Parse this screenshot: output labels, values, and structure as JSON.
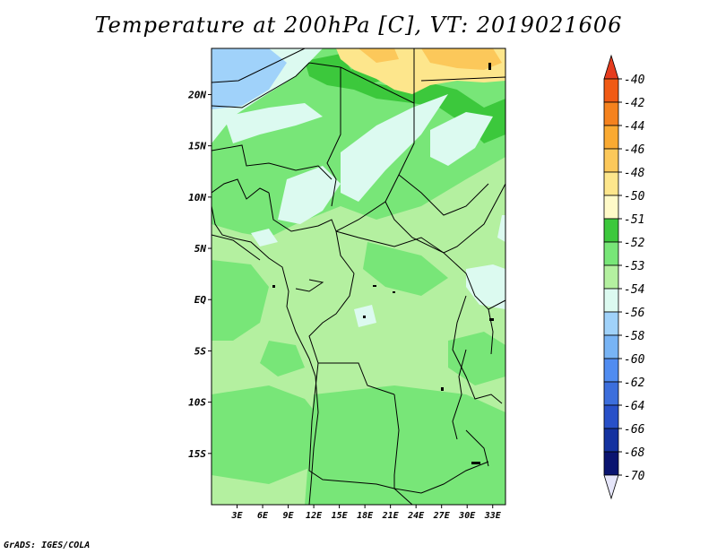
{
  "title": "Temperature at 200hPa [C], VT: 2019021606",
  "credit": "GrADS: IGES/COLA",
  "axes": {
    "lat_labels": [
      "20N",
      "15N",
      "10N",
      "5N",
      "EQ",
      "5S",
      "10S",
      "15S"
    ],
    "lat_values": [
      20,
      15,
      10,
      5,
      0,
      -5,
      -10,
      -15
    ],
    "lon_labels": [
      "3E",
      "6E",
      "9E",
      "12E",
      "15E",
      "18E",
      "21E",
      "24E",
      "27E",
      "30E",
      "33E"
    ],
    "lon_values": [
      3,
      6,
      9,
      12,
      15,
      18,
      21,
      24,
      27,
      30,
      33
    ],
    "lon_range": [
      0,
      34.5
    ],
    "lat_range": [
      -20,
      24.5
    ]
  },
  "colorbar": {
    "labels": [
      "-40",
      "-42",
      "-44",
      "-46",
      "-48",
      "-50",
      "-51",
      "-52",
      "-53",
      "-54",
      "-56",
      "-58",
      "-60",
      "-62",
      "-64",
      "-66",
      "-68",
      "-70"
    ],
    "colors": [
      "#e63c1e",
      "#f05a14",
      "#f5821e",
      "#faaa32",
      "#fcc85a",
      "#fde68c",
      "#fffac8",
      "#3cc83c",
      "#78e678",
      "#b4f0a0",
      "#dcfaf0",
      "#a0d2fa",
      "#78b4f5",
      "#508cf0",
      "#3c6edc",
      "#2850c8",
      "#1432a0",
      "#0a1470",
      "#e6e6fa"
    ]
  },
  "field_colors": {
    "warm_north": "#fcc85a",
    "warm_light": "#fde68c",
    "cold_nw": "#a0d2fa",
    "band_52": "#3cc83c",
    "band_53": "#78e678",
    "band_54": "#b4f0a0",
    "band_56": "#dcfaf0"
  }
}
